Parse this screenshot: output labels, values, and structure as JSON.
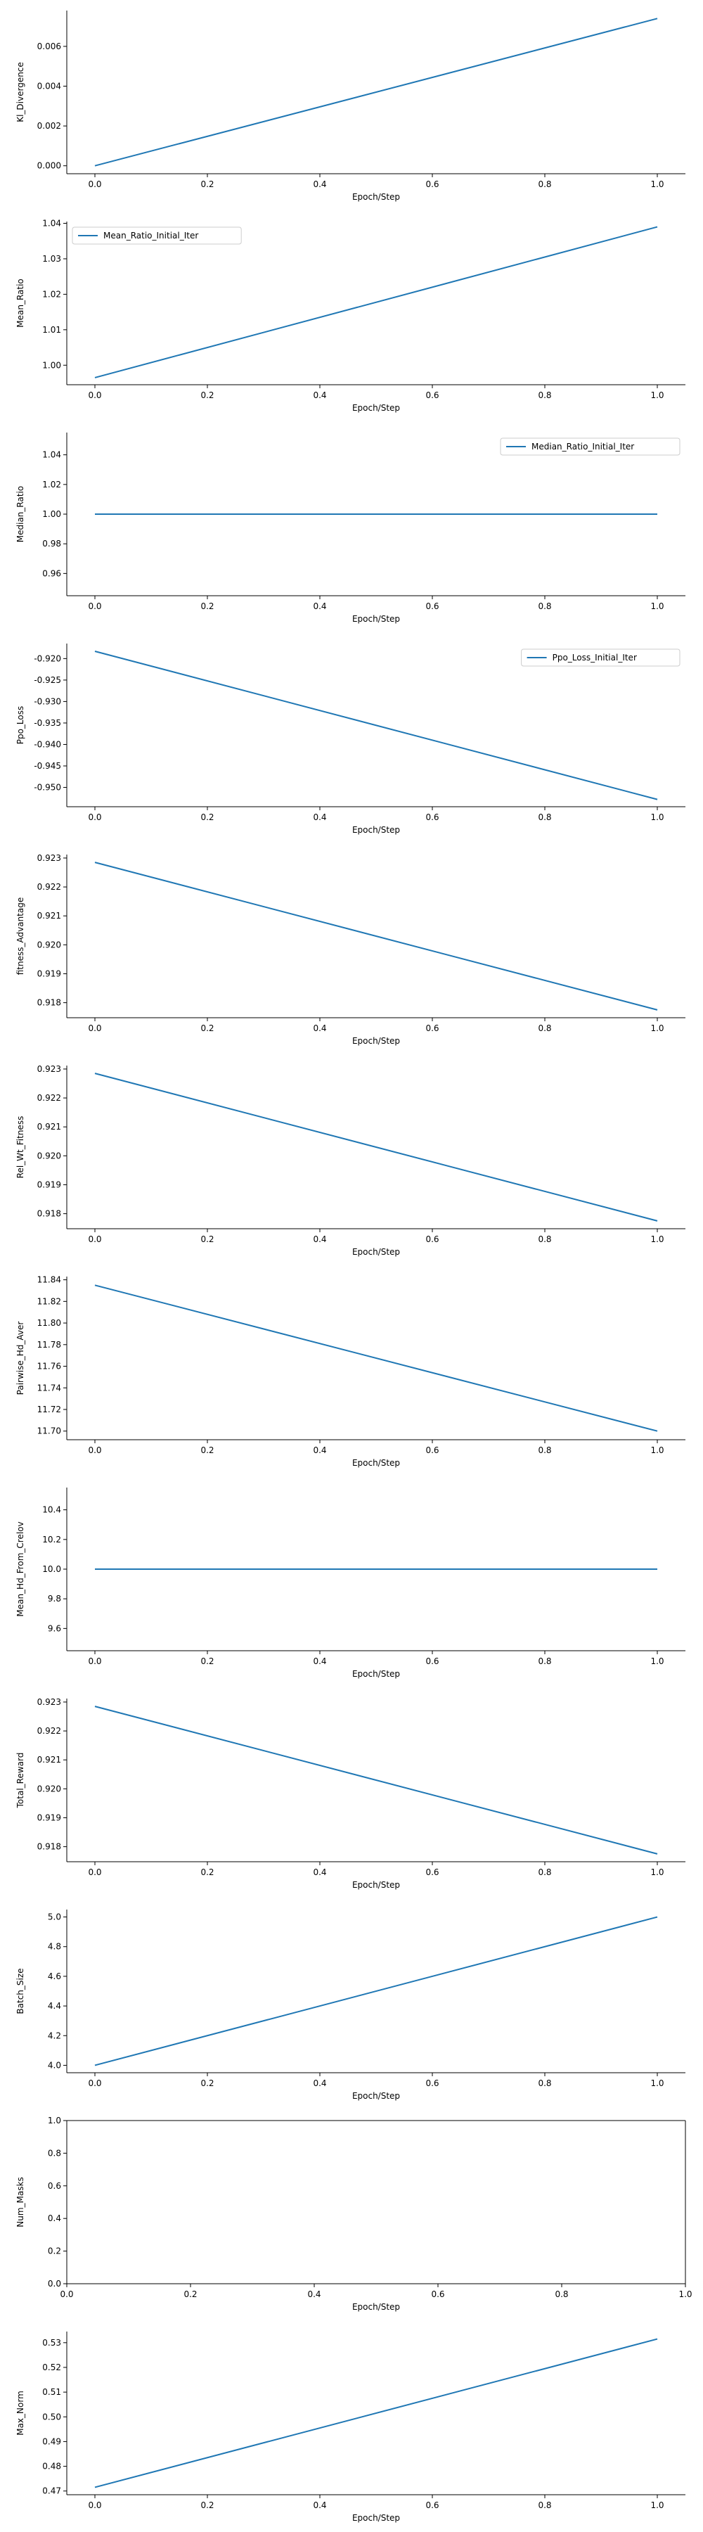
{
  "colors": {
    "series": "#1f77b4",
    "axis": "#000000",
    "legend_border": "#cccccc"
  },
  "chart_data": [
    {
      "type": "line",
      "xlabel": "Epoch/Step",
      "ylabel": "Kl_Divergence",
      "xlim": [
        -0.05,
        1.05
      ],
      "ylim": [
        -0.0004,
        0.0078
      ],
      "xticks": [
        "0.0",
        "0.2",
        "0.4",
        "0.6",
        "0.8",
        "1.0"
      ],
      "yticks": [
        "0.000",
        "0.002",
        "0.004",
        "0.006"
      ],
      "series": [
        {
          "x": [
            0,
            1
          ],
          "y": [
            0.0,
            0.0074
          ]
        }
      ],
      "legend": null,
      "grid": false
    },
    {
      "type": "line",
      "xlabel": "Epoch/Step",
      "ylabel": "Mean_Ratio",
      "xlim": [
        -0.05,
        1.05
      ],
      "ylim": [
        0.9945,
        1.0405
      ],
      "xticks": [
        "0.0",
        "0.2",
        "0.4",
        "0.6",
        "0.8",
        "1.0"
      ],
      "yticks": [
        "1.00",
        "1.01",
        "1.02",
        "1.03",
        "1.04"
      ],
      "series": [
        {
          "name": "Mean_Ratio_Initial_Iter",
          "x": [
            0,
            1
          ],
          "y": [
            0.9965,
            1.039
          ]
        }
      ],
      "legend": "top-left",
      "grid": false
    },
    {
      "type": "line",
      "xlabel": "Epoch/Step",
      "ylabel": "Median_Ratio",
      "xlim": [
        -0.05,
        1.05
      ],
      "ylim": [
        0.945,
        1.055
      ],
      "xticks": [
        "0.0",
        "0.2",
        "0.4",
        "0.6",
        "0.8",
        "1.0"
      ],
      "yticks": [
        "0.96",
        "0.98",
        "1.00",
        "1.02",
        "1.04"
      ],
      "series": [
        {
          "name": "Median_Ratio_Initial_Iter",
          "x": [
            0,
            1
          ],
          "y": [
            1.0,
            1.0
          ]
        }
      ],
      "legend": "top-right",
      "grid": false
    },
    {
      "type": "line",
      "xlabel": "Epoch/Step",
      "ylabel": "Ppo_Loss",
      "xlim": [
        -0.05,
        1.05
      ],
      "ylim": [
        -0.9545,
        -0.9165
      ],
      "xticks": [
        "0.0",
        "0.2",
        "0.4",
        "0.6",
        "0.8",
        "1.0"
      ],
      "yticks": [
        "-0.920",
        "-0.925",
        "-0.930",
        "-0.935",
        "-0.940",
        "-0.945",
        "-0.950"
      ],
      "series": [
        {
          "name": "Ppo_Loss_Initial_Iter",
          "x": [
            0,
            1
          ],
          "y": [
            -0.9183,
            -0.9528
          ]
        }
      ],
      "legend": "top-right",
      "grid": false
    },
    {
      "type": "line",
      "xlabel": "Epoch/Step",
      "ylabel": "fitness_Advantage",
      "xlim": [
        -0.05,
        1.05
      ],
      "ylim": [
        0.91748,
        0.92312
      ],
      "xticks": [
        "0.0",
        "0.2",
        "0.4",
        "0.6",
        "0.8",
        "1.0"
      ],
      "yticks": [
        "0.918",
        "0.919",
        "0.920",
        "0.921",
        "0.922",
        "0.923"
      ],
      "series": [
        {
          "x": [
            0,
            1
          ],
          "y": [
            0.92285,
            0.91775
          ]
        }
      ],
      "legend": null,
      "grid": false
    },
    {
      "type": "line",
      "xlabel": "Epoch/Step",
      "ylabel": "Rel_Wt_Fitness",
      "xlim": [
        -0.05,
        1.05
      ],
      "ylim": [
        0.91748,
        0.92312
      ],
      "xticks": [
        "0.0",
        "0.2",
        "0.4",
        "0.6",
        "0.8",
        "1.0"
      ],
      "yticks": [
        "0.918",
        "0.919",
        "0.920",
        "0.921",
        "0.922",
        "0.923"
      ],
      "series": [
        {
          "x": [
            0,
            1
          ],
          "y": [
            0.92285,
            0.91775
          ]
        }
      ],
      "legend": null,
      "grid": false
    },
    {
      "type": "line",
      "xlabel": "Epoch/Step",
      "ylabel": "Pairwise_Hd_Aver",
      "xlim": [
        -0.05,
        1.05
      ],
      "ylim": [
        11.692,
        11.843
      ],
      "xticks": [
        "0.0",
        "0.2",
        "0.4",
        "0.6",
        "0.8",
        "1.0"
      ],
      "yticks": [
        "11.70",
        "11.72",
        "11.74",
        "11.76",
        "11.78",
        "11.80",
        "11.82",
        "11.84"
      ],
      "series": [
        {
          "x": [
            0,
            1
          ],
          "y": [
            11.835,
            11.7
          ]
        }
      ],
      "legend": null,
      "grid": false
    },
    {
      "type": "line",
      "xlabel": "Epoch/Step",
      "ylabel": "Mean_Hd_From_Crelov",
      "xlim": [
        -0.05,
        1.05
      ],
      "ylim": [
        9.45,
        10.55
      ],
      "xticks": [
        "0.0",
        "0.2",
        "0.4",
        "0.6",
        "0.8",
        "1.0"
      ],
      "yticks": [
        "9.6",
        "9.8",
        "10.0",
        "10.2",
        "10.4"
      ],
      "series": [
        {
          "x": [
            0,
            1
          ],
          "y": [
            10.0,
            10.0
          ]
        }
      ],
      "legend": null,
      "grid": false
    },
    {
      "type": "line",
      "xlabel": "Epoch/Step",
      "ylabel": "Total_Reward",
      "xlim": [
        -0.05,
        1.05
      ],
      "ylim": [
        0.91748,
        0.92312
      ],
      "xticks": [
        "0.0",
        "0.2",
        "0.4",
        "0.6",
        "0.8",
        "1.0"
      ],
      "yticks": [
        "0.918",
        "0.919",
        "0.920",
        "0.921",
        "0.922",
        "0.923"
      ],
      "series": [
        {
          "x": [
            0,
            1
          ],
          "y": [
            0.92285,
            0.91775
          ]
        }
      ],
      "legend": null,
      "grid": false
    },
    {
      "type": "line",
      "xlabel": "Epoch/Step",
      "ylabel": "Batch_Size",
      "xlim": [
        -0.05,
        1.05
      ],
      "ylim": [
        3.95,
        5.05
      ],
      "xticks": [
        "0.0",
        "0.2",
        "0.4",
        "0.6",
        "0.8",
        "1.0"
      ],
      "yticks": [
        "4.0",
        "4.2",
        "4.4",
        "4.6",
        "4.8",
        "5.0"
      ],
      "series": [
        {
          "x": [
            0,
            1
          ],
          "y": [
            4.0,
            5.0
          ]
        }
      ],
      "legend": null,
      "grid": false
    },
    {
      "type": "line",
      "xlabel": "Epoch/Step",
      "ylabel": "Num_Masks",
      "xlim": [
        0,
        1
      ],
      "ylim": [
        0,
        1
      ],
      "xticks": [
        "0.0",
        "0.2",
        "0.4",
        "0.6",
        "0.8",
        "1.0"
      ],
      "yticks": [
        "0.0",
        "0.2",
        "0.4",
        "0.6",
        "0.8",
        "1.0"
      ],
      "series": [],
      "legend": null,
      "grid": false
    },
    {
      "type": "line",
      "xlabel": "Epoch/Step",
      "ylabel": "Max_Norm",
      "xlim": [
        -0.05,
        1.05
      ],
      "ylim": [
        0.4685,
        0.5345
      ],
      "xticks": [
        "0.0",
        "0.2",
        "0.4",
        "0.6",
        "0.8",
        "1.0"
      ],
      "yticks": [
        "0.47",
        "0.48",
        "0.49",
        "0.50",
        "0.51",
        "0.52",
        "0.53"
      ],
      "series": [
        {
          "x": [
            0,
            1
          ],
          "y": [
            0.4715,
            0.5315
          ]
        }
      ],
      "legend": null,
      "grid": false
    }
  ]
}
